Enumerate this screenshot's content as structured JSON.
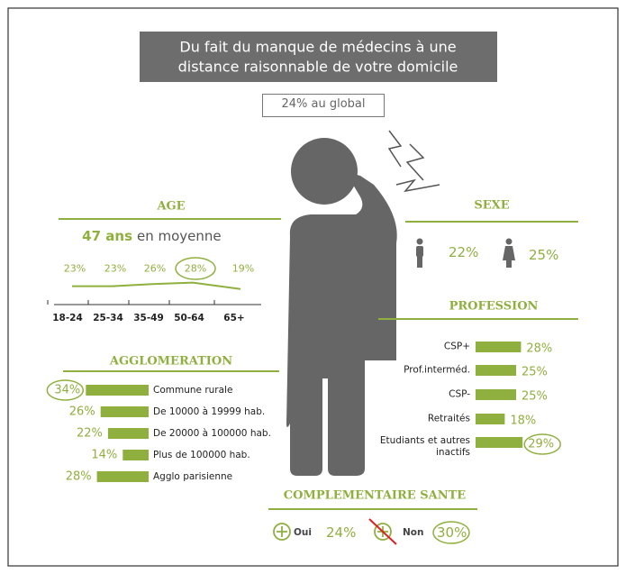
{
  "header": {
    "title_lines": [
      "Du fait du manque de médecins à une",
      "distance raisonnable de votre domicile"
    ],
    "global": "24% au global"
  },
  "age": {
    "title": "AGE",
    "average_value": "47 ans",
    "average_text": "en moyenne",
    "categories": [
      "18-24",
      "25-34",
      "35-49",
      "50-64",
      "65+"
    ],
    "values": [
      23,
      23,
      26,
      28,
      19
    ],
    "value_labels": [
      "23%",
      "23%",
      "26%",
      "28%",
      "19%"
    ],
    "circled": 3
  },
  "sexe": {
    "title": "SEXE",
    "values": [
      "22%",
      "25%"
    ]
  },
  "profession": {
    "title": "PROFESSION",
    "categories": [
      "CSP+",
      "Prof.interméd.",
      "CSP-",
      "Retraités",
      "Etudiants et autres inactifs"
    ],
    "values": [
      28,
      25,
      25,
      18,
      29
    ],
    "value_labels": [
      "28%",
      "25%",
      "25%",
      "18%",
      "29%"
    ],
    "circled": 4
  },
  "agglomeration": {
    "title": "AGGLOMERATION",
    "categories": [
      "Commune rurale",
      "De 10000 à 19999 hab.",
      "De 20000 à 100000 hab.",
      "Plus de 100000 hab.",
      "Agglo parisienne"
    ],
    "values": [
      34,
      26,
      22,
      14,
      28
    ],
    "value_labels": [
      "34%",
      "26%",
      "22%",
      "14%",
      "28%"
    ],
    "circled": 0
  },
  "complementaire": {
    "title": "COMPLEMENTAIRE SANTE",
    "items": [
      {
        "label": "Oui",
        "value": "24%"
      },
      {
        "label": "Non",
        "value": "30%"
      }
    ],
    "circled": 1
  }
}
